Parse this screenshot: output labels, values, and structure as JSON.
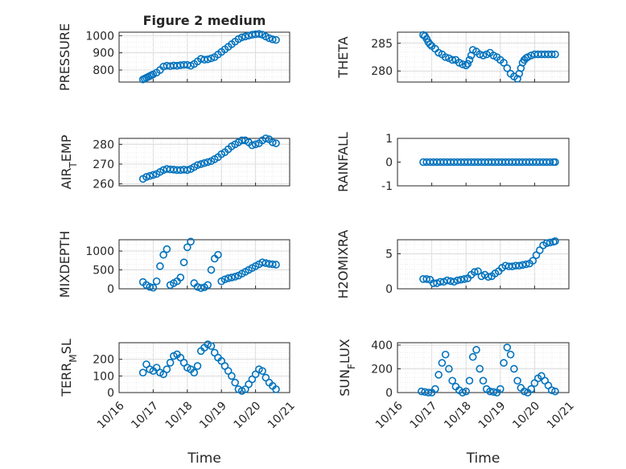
{
  "figure": {
    "title": "Figure 2 medium",
    "x_label_left": "Time",
    "x_label_right": "Time",
    "date_ticks": [
      "10/16",
      "10/17",
      "10/18",
      "10/19",
      "10/20",
      "10/21"
    ]
  },
  "style": {
    "marker_color": "#0072BD",
    "axis_color": "#262626",
    "grid_color": "#d9d9d9"
  },
  "chart_data": [
    {
      "type": "scatter",
      "panel": "top-left",
      "title": "Figure 2 medium",
      "ylabel": "PRESSURE",
      "ylabel_parts": [
        "PRESSURE"
      ],
      "xlim": [
        16.0,
        21.0
      ],
      "ylim": [
        730,
        1020
      ],
      "yticks": [
        800,
        900,
        1000
      ],
      "ytick_labels": [
        "800",
        "900",
        "1000"
      ],
      "grid": true,
      "x": [
        16.7,
        16.75,
        16.8,
        16.85,
        16.9,
        16.95,
        17.0,
        17.1,
        17.2,
        17.3,
        17.4,
        17.5,
        17.6,
        17.7,
        17.8,
        17.9,
        18.0,
        18.1,
        18.2,
        18.3,
        18.4,
        18.5,
        18.6,
        18.7,
        18.8,
        18.9,
        19.0,
        19.1,
        19.2,
        19.3,
        19.4,
        19.5,
        19.6,
        19.7,
        19.8,
        19.9,
        20.0,
        20.1,
        20.2,
        20.3,
        20.4,
        20.5,
        20.6
      ],
      "y": [
        745,
        750,
        755,
        760,
        765,
        770,
        775,
        785,
        800,
        820,
        825,
        823,
        826,
        825,
        828,
        830,
        830,
        825,
        835,
        850,
        865,
        860,
        862,
        868,
        875,
        890,
        905,
        920,
        935,
        950,
        965,
        980,
        990,
        995,
        1000,
        1005,
        1008,
        1010,
        1005,
        995,
        985,
        978,
        975
      ]
    },
    {
      "type": "scatter",
      "panel": "top-right",
      "ylabel": "THETA",
      "ylabel_parts": [
        "THETA"
      ],
      "xlim": [
        16.0,
        21.0
      ],
      "ylim": [
        278,
        287
      ],
      "yticks": [
        280,
        285
      ],
      "ytick_labels": [
        "280",
        "285"
      ],
      "grid": true,
      "x": [
        16.75,
        16.8,
        16.85,
        16.9,
        16.95,
        17.0,
        17.1,
        17.2,
        17.3,
        17.4,
        17.5,
        17.6,
        17.7,
        17.8,
        17.9,
        18.0,
        18.05,
        18.1,
        18.15,
        18.2,
        18.3,
        18.4,
        18.5,
        18.6,
        18.7,
        18.8,
        18.9,
        19.0,
        19.1,
        19.2,
        19.3,
        19.4,
        19.5,
        19.55,
        19.6,
        19.65,
        19.7,
        19.75,
        19.8,
        19.9,
        20.0,
        20.1,
        20.2,
        20.3,
        20.4,
        20.5,
        20.6
      ],
      "y": [
        286.5,
        286.3,
        285.8,
        285.2,
        284.8,
        284.5,
        284.0,
        283.3,
        283.0,
        282.5,
        282.3,
        282.0,
        282.0,
        281.5,
        281.2,
        281.0,
        281.3,
        282.0,
        282.8,
        283.8,
        283.5,
        283.0,
        282.8,
        283.0,
        283.3,
        282.8,
        282.5,
        282.0,
        281.5,
        280.5,
        279.5,
        279.0,
        278.6,
        279.5,
        280.5,
        281.5,
        282.0,
        282.3,
        282.5,
        282.8,
        283.0,
        283.0,
        283.0,
        283.0,
        283.0,
        283.0,
        283.0
      ]
    },
    {
      "type": "scatter",
      "panel": "row2-left",
      "ylabel": "AIR_TEMP",
      "ylabel_parts": [
        "AIR",
        "T",
        "EMP"
      ],
      "xlim": [
        16.0,
        21.0
      ],
      "ylim": [
        259,
        283
      ],
      "yticks": [
        260,
        270,
        280
      ],
      "ytick_labels": [
        "260",
        "270",
        "280"
      ],
      "grid": true,
      "x": [
        16.7,
        16.8,
        16.9,
        17.0,
        17.1,
        17.2,
        17.3,
        17.4,
        17.5,
        17.6,
        17.7,
        17.8,
        17.9,
        18.0,
        18.1,
        18.2,
        18.3,
        18.4,
        18.5,
        18.6,
        18.7,
        18.8,
        18.9,
        19.0,
        19.1,
        19.2,
        19.3,
        19.4,
        19.5,
        19.6,
        19.7,
        19.8,
        19.9,
        20.0,
        20.1,
        20.2,
        20.3,
        20.4,
        20.5,
        20.6
      ],
      "y": [
        262.5,
        263.5,
        264.0,
        264.5,
        265.0,
        266.0,
        267.0,
        267.5,
        267.3,
        267.2,
        267.0,
        267.0,
        267.2,
        267.0,
        267.5,
        268.5,
        269.5,
        270.0,
        270.5,
        271.0,
        271.5,
        272.5,
        273.5,
        275.0,
        276.0,
        277.5,
        279.0,
        280.0,
        281.0,
        282.0,
        282.0,
        281.0,
        279.5,
        280.0,
        280.5,
        282.0,
        283.0,
        282.5,
        281.0,
        280.5
      ]
    },
    {
      "type": "scatter",
      "panel": "row2-right",
      "ylabel": "RAINFALL",
      "ylabel_parts": [
        "RAINFALL"
      ],
      "xlim": [
        16.0,
        21.0
      ],
      "ylim": [
        -1,
        1
      ],
      "yticks": [
        -1,
        0,
        1
      ],
      "ytick_labels": [
        "-1",
        "0",
        "1"
      ],
      "grid": false,
      "x": [
        16.75,
        16.85,
        16.95,
        17.05,
        17.15,
        17.25,
        17.35,
        17.45,
        17.55,
        17.65,
        17.75,
        17.85,
        17.95,
        18.05,
        18.15,
        18.25,
        18.35,
        18.45,
        18.55,
        18.65,
        18.75,
        18.85,
        18.95,
        19.05,
        19.15,
        19.25,
        19.35,
        19.45,
        19.55,
        19.65,
        19.75,
        19.85,
        19.95,
        20.05,
        20.15,
        20.25,
        20.35,
        20.45,
        20.55,
        20.6
      ],
      "y": [
        0,
        0,
        0,
        0,
        0,
        0,
        0,
        0,
        0,
        0,
        0,
        0,
        0,
        0,
        0,
        0,
        0,
        0,
        0,
        0,
        0,
        0,
        0,
        0,
        0,
        0,
        0,
        0,
        0,
        0,
        0,
        0,
        0,
        0,
        0,
        0,
        0,
        0,
        0,
        0
      ]
    },
    {
      "type": "scatter",
      "panel": "row3-left",
      "ylabel": "MIXDEPTH",
      "ylabel_parts": [
        "MIXDEPTH"
      ],
      "xlim": [
        16.0,
        21.0
      ],
      "ylim": [
        0,
        1300
      ],
      "yticks": [
        0,
        500,
        1000
      ],
      "ytick_labels": [
        "0",
        "500",
        "1000"
      ],
      "grid": true,
      "x": [
        16.7,
        16.8,
        16.9,
        17.0,
        17.1,
        17.2,
        17.3,
        17.4,
        17.5,
        17.6,
        17.7,
        17.8,
        17.9,
        18.0,
        18.1,
        18.2,
        18.3,
        18.4,
        18.5,
        18.6,
        18.7,
        18.8,
        18.9,
        19.0,
        19.1,
        19.2,
        19.3,
        19.4,
        19.5,
        19.6,
        19.7,
        19.8,
        19.9,
        20.0,
        20.1,
        20.2,
        20.3,
        20.4,
        20.5,
        20.6
      ],
      "y": [
        180,
        100,
        50,
        30,
        200,
        600,
        900,
        1050,
        100,
        150,
        200,
        300,
        700,
        1100,
        1250,
        150,
        50,
        20,
        40,
        100,
        500,
        800,
        900,
        200,
        250,
        280,
        300,
        320,
        350,
        400,
        450,
        500,
        550,
        600,
        650,
        700,
        680,
        660,
        650,
        640
      ]
    },
    {
      "type": "scatter",
      "panel": "row3-right",
      "ylabel": "H2OMIXRA",
      "ylabel_parts": [
        "H2OMIXRA"
      ],
      "xlim": [
        16.0,
        21.0
      ],
      "ylim": [
        0,
        7
      ],
      "yticks": [
        0,
        5
      ],
      "ytick_labels": [
        "0",
        "5"
      ],
      "grid": true,
      "x": [
        16.75,
        16.85,
        16.95,
        17.05,
        17.15,
        17.25,
        17.35,
        17.45,
        17.55,
        17.65,
        17.75,
        17.85,
        17.95,
        18.05,
        18.15,
        18.25,
        18.35,
        18.45,
        18.55,
        18.65,
        18.75,
        18.85,
        18.95,
        19.05,
        19.15,
        19.25,
        19.35,
        19.45,
        19.55,
        19.65,
        19.75,
        19.85,
        19.95,
        20.05,
        20.15,
        20.25,
        20.35,
        20.45,
        20.55,
        20.6
      ],
      "y": [
        1.4,
        1.4,
        1.3,
        0.8,
        0.8,
        1.0,
        1.0,
        1.2,
        1.1,
        1.0,
        1.2,
        1.3,
        1.4,
        1.5,
        2.0,
        2.4,
        2.5,
        1.8,
        2.0,
        1.7,
        1.8,
        2.2,
        2.5,
        3.0,
        3.3,
        3.2,
        3.2,
        3.3,
        3.3,
        3.4,
        3.5,
        3.6,
        4.0,
        4.8,
        5.5,
        6.2,
        6.5,
        6.6,
        6.7,
        6.8
      ]
    },
    {
      "type": "scatter",
      "panel": "bottom-left",
      "ylabel": "TERR_MSL",
      "ylabel_parts": [
        "TERR",
        "M",
        "SL"
      ],
      "xlabel": "Time",
      "xlim": [
        16.0,
        21.0
      ],
      "ylim": [
        0,
        300
      ],
      "yticks": [
        0,
        100,
        200
      ],
      "ytick_labels": [
        "0",
        "100",
        "200"
      ],
      "xticks": [
        16,
        17,
        18,
        19,
        20,
        21
      ],
      "xtick_labels": [
        "10/16",
        "10/17",
        "10/18",
        "10/19",
        "10/20",
        "10/21"
      ],
      "grid": true,
      "x": [
        16.7,
        16.8,
        16.9,
        17.0,
        17.1,
        17.2,
        17.3,
        17.4,
        17.5,
        17.6,
        17.7,
        17.8,
        17.9,
        18.0,
        18.1,
        18.2,
        18.3,
        18.4,
        18.5,
        18.6,
        18.7,
        18.8,
        18.9,
        19.0,
        19.1,
        19.2,
        19.3,
        19.4,
        19.5,
        19.6,
        19.7,
        19.8,
        19.9,
        20.0,
        20.1,
        20.2,
        20.3,
        20.4,
        20.5,
        20.6
      ],
      "y": [
        120,
        170,
        140,
        130,
        150,
        120,
        110,
        140,
        180,
        220,
        230,
        210,
        180,
        150,
        140,
        120,
        160,
        250,
        270,
        290,
        280,
        240,
        210,
        190,
        160,
        130,
        100,
        60,
        20,
        10,
        20,
        50,
        80,
        110,
        140,
        130,
        90,
        60,
        40,
        20
      ]
    },
    {
      "type": "scatter",
      "panel": "bottom-right",
      "ylabel": "SUN_FLUX",
      "ylabel_parts": [
        "SUN",
        "F",
        "LUX"
      ],
      "xlabel": "Time",
      "xlim": [
        16.0,
        21.0
      ],
      "ylim": [
        0,
        420
      ],
      "yticks": [
        0,
        200,
        400
      ],
      "ytick_labels": [
        "0",
        "200",
        "400"
      ],
      "xticks": [
        16,
        17,
        18,
        19,
        20,
        21
      ],
      "xtick_labels": [
        "10/16",
        "10/17",
        "10/18",
        "10/19",
        "10/20",
        "10/21"
      ],
      "grid": true,
      "x": [
        16.7,
        16.8,
        16.9,
        17.0,
        17.1,
        17.2,
        17.3,
        17.4,
        17.5,
        17.6,
        17.7,
        17.8,
        17.9,
        18.0,
        18.1,
        18.2,
        18.3,
        18.4,
        18.5,
        18.6,
        18.7,
        18.8,
        18.9,
        19.0,
        19.1,
        19.2,
        19.3,
        19.4,
        19.5,
        19.6,
        19.7,
        19.8,
        19.9,
        20.0,
        20.1,
        20.2,
        20.3,
        20.4,
        20.5,
        20.6
      ],
      "y": [
        10,
        5,
        0,
        0,
        30,
        150,
        250,
        320,
        200,
        100,
        50,
        20,
        0,
        10,
        100,
        300,
        360,
        200,
        100,
        30,
        10,
        5,
        0,
        30,
        250,
        380,
        320,
        200,
        100,
        40,
        10,
        0,
        30,
        80,
        120,
        140,
        100,
        60,
        20,
        10
      ]
    }
  ]
}
